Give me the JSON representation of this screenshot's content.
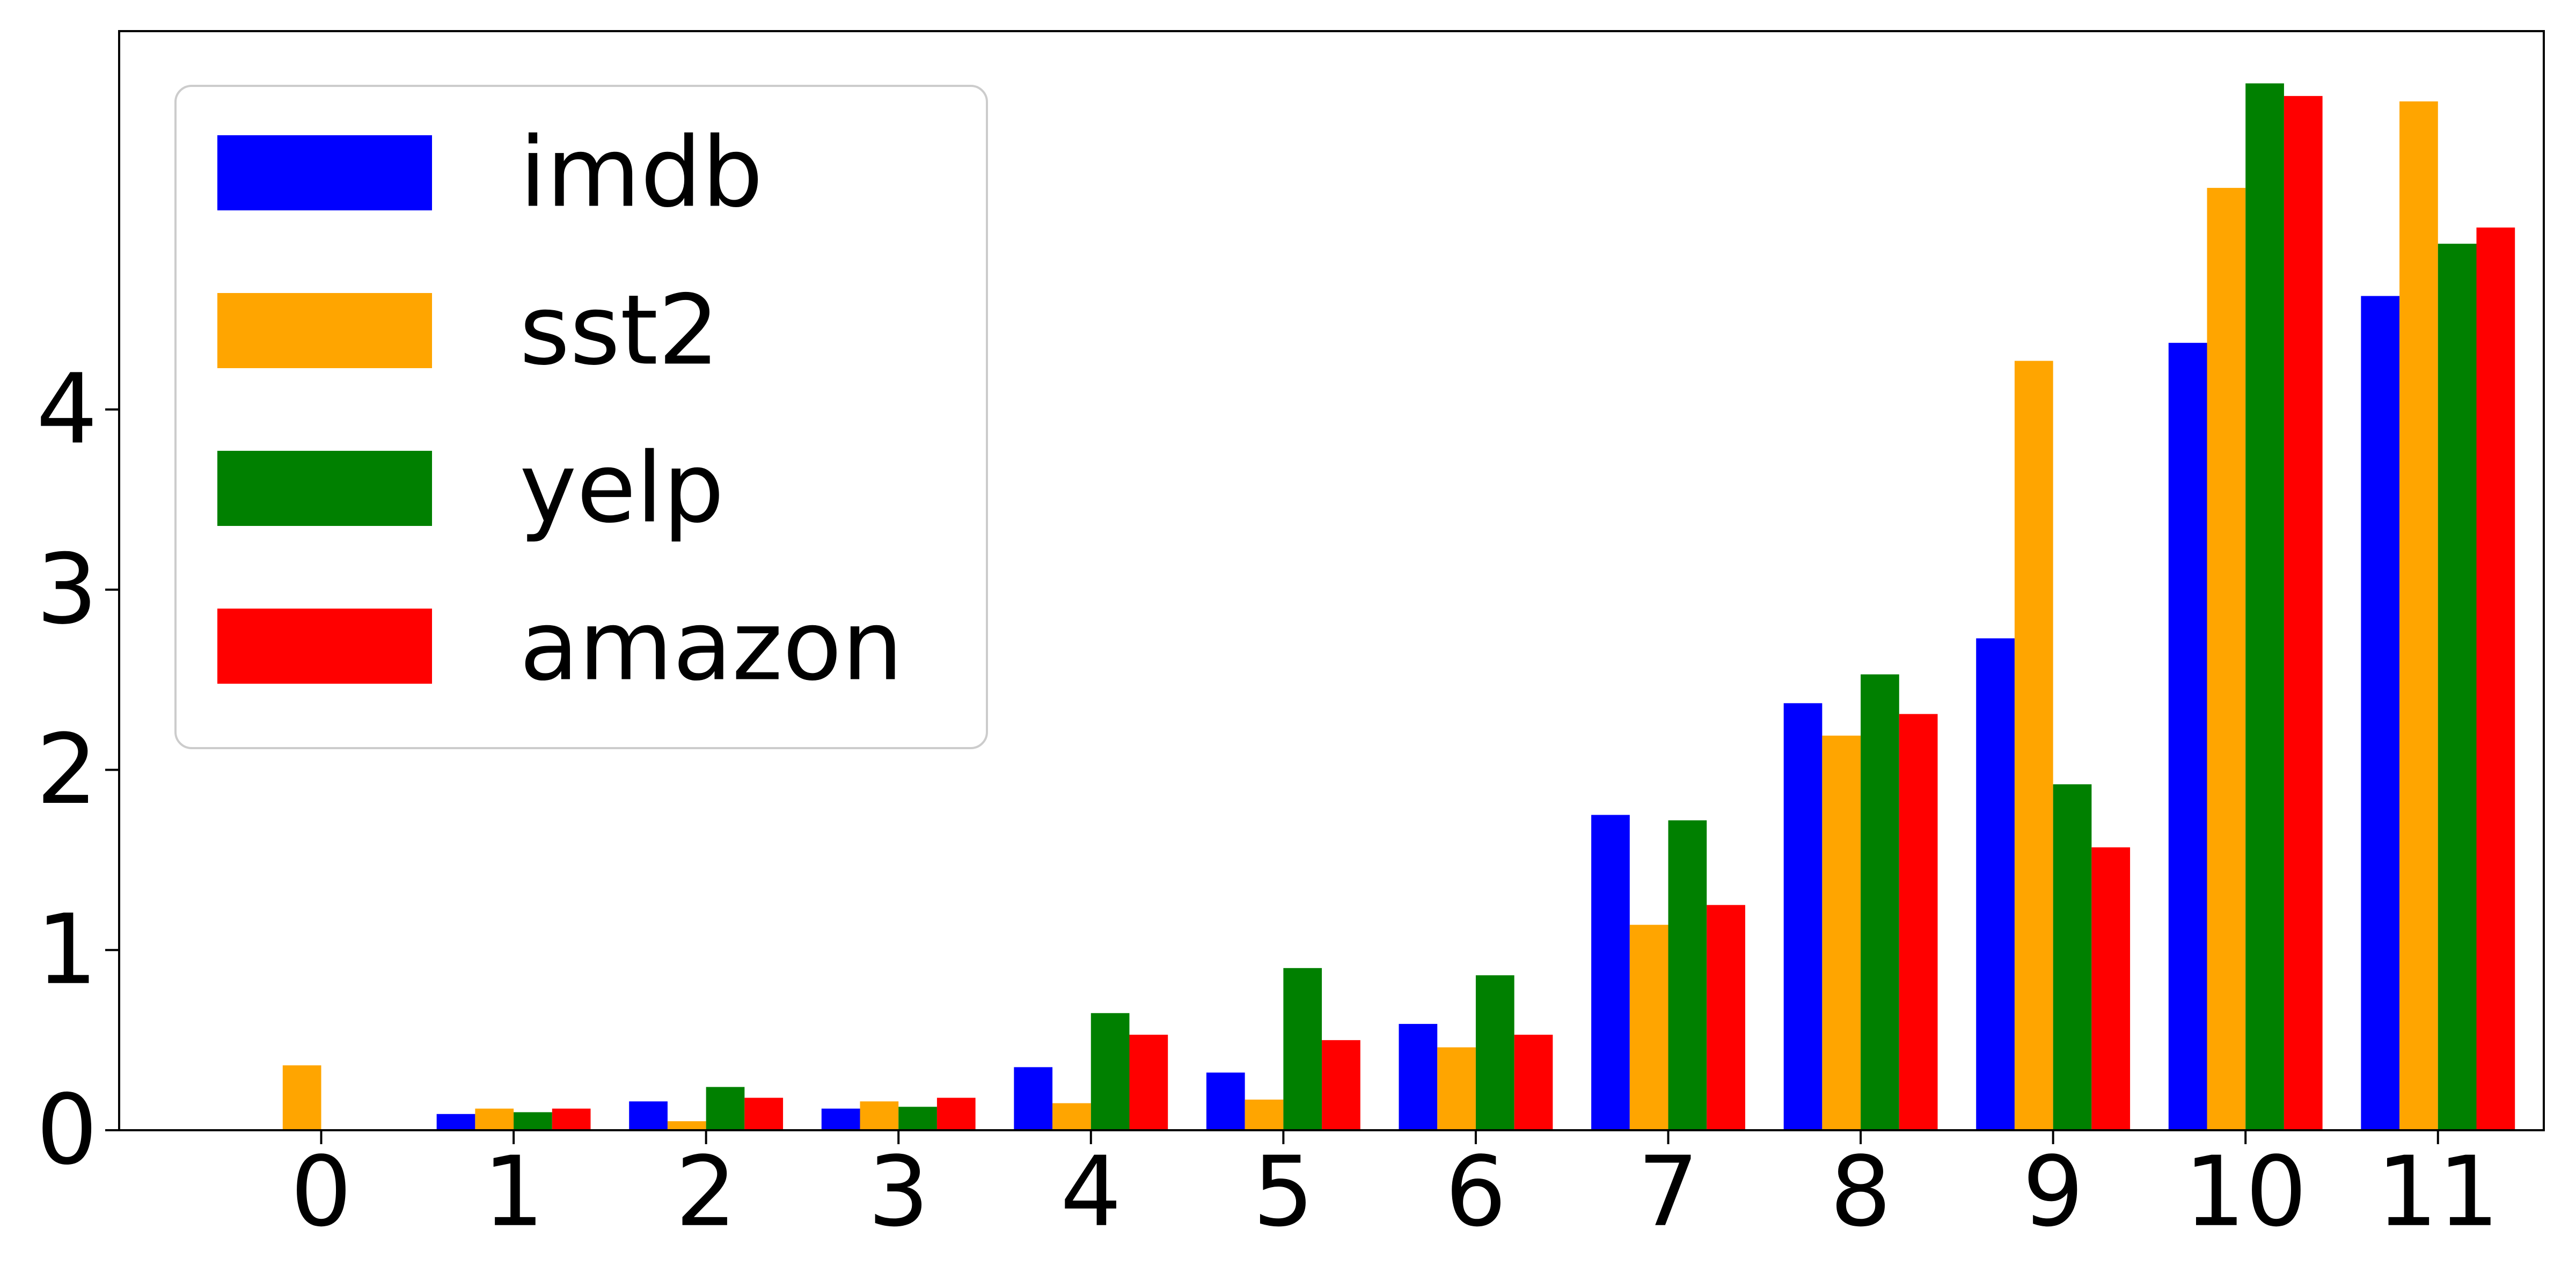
{
  "chart_data": {
    "type": "bar",
    "title": "",
    "xlabel": "",
    "ylabel": "",
    "categories": [
      "0",
      "1",
      "2",
      "3",
      "4",
      "5",
      "6",
      "7",
      "8",
      "9",
      "10",
      "11"
    ],
    "y_ticks": [
      "0",
      "1",
      "2",
      "3",
      "4"
    ],
    "ylim": [
      0,
      6.1
    ],
    "grid": false,
    "legend_position": "top-left",
    "series": [
      {
        "name": "imdb",
        "color": "#0000ff",
        "values": [
          0.0,
          0.09,
          0.16,
          0.12,
          0.35,
          0.32,
          0.59,
          1.75,
          2.37,
          2.73,
          4.37,
          4.63
        ]
      },
      {
        "name": "sst2",
        "color": "#ffa500",
        "values": [
          0.36,
          0.12,
          0.05,
          0.16,
          0.15,
          0.17,
          0.46,
          1.14,
          2.19,
          4.27,
          5.23,
          5.71
        ]
      },
      {
        "name": "yelp",
        "color": "#008000",
        "values": [
          0.0,
          0.1,
          0.24,
          0.13,
          0.65,
          0.9,
          0.86,
          1.72,
          2.53,
          1.92,
          5.81,
          4.92
        ]
      },
      {
        "name": "amazon",
        "color": "#ff0000",
        "values": [
          0.0,
          0.12,
          0.18,
          0.18,
          0.53,
          0.5,
          0.53,
          1.25,
          2.31,
          1.57,
          5.74,
          5.01
        ]
      }
    ]
  }
}
